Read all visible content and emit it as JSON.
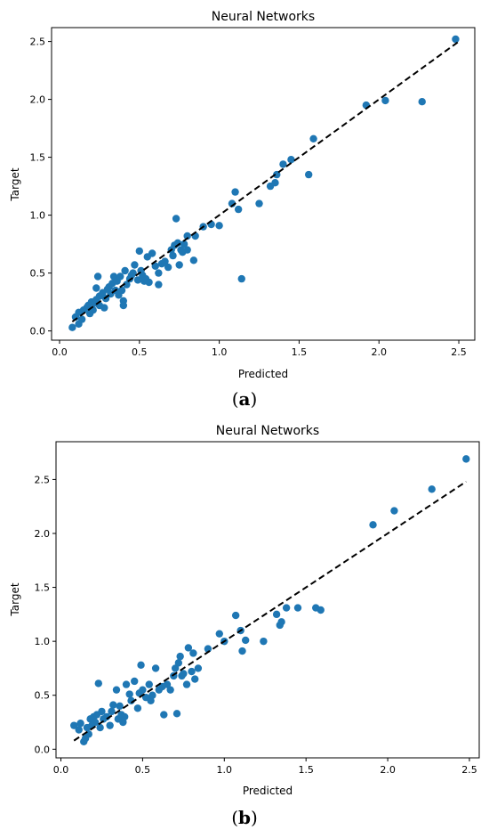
{
  "chart_data": [
    {
      "type": "scatter",
      "title": "Neural Networks",
      "xlabel": "Predicted",
      "ylabel": "Target",
      "xlim": [
        -0.05,
        2.6
      ],
      "ylim": [
        -0.08,
        2.62
      ],
      "xticks": [
        0.0,
        0.5,
        1.0,
        1.5,
        2.0,
        2.5
      ],
      "yticks": [
        0.0,
        0.5,
        1.0,
        1.5,
        2.0,
        2.5
      ],
      "tick_labels_x": [
        "0.0",
        "0.5",
        "1.0",
        "1.5",
        "2.0",
        "2.5"
      ],
      "tick_labels_y": [
        "0.0",
        "0.5",
        "1.0",
        "1.5",
        "2.0",
        "2.5"
      ],
      "grid": false,
      "point_color": "#1f77b4",
      "reference_line": {
        "x": [
          0.08,
          2.5
        ],
        "y": [
          0.08,
          2.5
        ],
        "style": "dashed",
        "color": "#000000"
      },
      "points": [
        [
          0.08,
          0.03
        ],
        [
          0.1,
          0.12
        ],
        [
          0.12,
          0.06
        ],
        [
          0.12,
          0.16
        ],
        [
          0.14,
          0.1
        ],
        [
          0.15,
          0.18
        ],
        [
          0.17,
          0.2
        ],
        [
          0.18,
          0.22
        ],
        [
          0.19,
          0.15
        ],
        [
          0.2,
          0.25
        ],
        [
          0.21,
          0.18
        ],
        [
          0.22,
          0.24
        ],
        [
          0.23,
          0.27
        ],
        [
          0.23,
          0.37
        ],
        [
          0.24,
          0.47
        ],
        [
          0.25,
          0.3
        ],
        [
          0.25,
          0.22
        ],
        [
          0.27,
          0.33
        ],
        [
          0.28,
          0.2
        ],
        [
          0.29,
          0.28
        ],
        [
          0.3,
          0.36
        ],
        [
          0.31,
          0.38
        ],
        [
          0.32,
          0.32
        ],
        [
          0.33,
          0.41
        ],
        [
          0.34,
          0.47
        ],
        [
          0.35,
          0.35
        ],
        [
          0.36,
          0.43
        ],
        [
          0.37,
          0.31
        ],
        [
          0.38,
          0.47
        ],
        [
          0.39,
          0.35
        ],
        [
          0.4,
          0.26
        ],
        [
          0.4,
          0.22
        ],
        [
          0.41,
          0.52
        ],
        [
          0.42,
          0.4
        ],
        [
          0.44,
          0.45
        ],
        [
          0.45,
          0.48
        ],
        [
          0.46,
          0.5
        ],
        [
          0.47,
          0.57
        ],
        [
          0.49,
          0.44
        ],
        [
          0.5,
          0.69
        ],
        [
          0.51,
          0.52
        ],
        [
          0.52,
          0.48
        ],
        [
          0.53,
          0.43
        ],
        [
          0.54,
          0.45
        ],
        [
          0.55,
          0.64
        ],
        [
          0.56,
          0.42
        ],
        [
          0.58,
          0.67
        ],
        [
          0.6,
          0.56
        ],
        [
          0.62,
          0.5
        ],
        [
          0.62,
          0.4
        ],
        [
          0.64,
          0.58
        ],
        [
          0.66,
          0.6
        ],
        [
          0.68,
          0.55
        ],
        [
          0.7,
          0.7
        ],
        [
          0.71,
          0.65
        ],
        [
          0.72,
          0.74
        ],
        [
          0.73,
          0.97
        ],
        [
          0.74,
          0.76
        ],
        [
          0.75,
          0.57
        ],
        [
          0.76,
          0.7
        ],
        [
          0.77,
          0.68
        ],
        [
          0.78,
          0.75
        ],
        [
          0.8,
          0.7
        ],
        [
          0.8,
          0.82
        ],
        [
          0.84,
          0.61
        ],
        [
          0.85,
          0.82
        ],
        [
          0.9,
          0.9
        ],
        [
          0.95,
          0.92
        ],
        [
          1.0,
          0.91
        ],
        [
          1.08,
          1.1
        ],
        [
          1.1,
          1.2
        ],
        [
          1.12,
          1.05
        ],
        [
          1.14,
          0.45
        ],
        [
          1.25,
          1.1
        ],
        [
          1.32,
          1.25
        ],
        [
          1.35,
          1.28
        ],
        [
          1.36,
          1.35
        ],
        [
          1.4,
          1.44
        ],
        [
          1.45,
          1.48
        ],
        [
          1.56,
          1.35
        ],
        [
          1.59,
          1.66
        ],
        [
          1.92,
          1.95
        ],
        [
          2.04,
          1.99
        ],
        [
          2.27,
          1.98
        ],
        [
          2.48,
          2.52
        ]
      ]
    },
    {
      "type": "scatter",
      "title": "Neural Networks",
      "xlabel": "Predicted",
      "ylabel": "Target",
      "xlim": [
        -0.03,
        2.56
      ],
      "ylim": [
        -0.08,
        2.85
      ],
      "xticks": [
        0.0,
        0.5,
        1.0,
        1.5,
        2.0,
        2.5
      ],
      "yticks": [
        0.0,
        0.5,
        1.0,
        1.5,
        2.0,
        2.5
      ],
      "tick_labels_x": [
        "0.0",
        "0.5",
        "1.0",
        "1.5",
        "2.0",
        "2.5"
      ],
      "tick_labels_y": [
        "0.0",
        "0.5",
        "1.0",
        "1.5",
        "2.0",
        "2.5"
      ],
      "grid": false,
      "point_color": "#1f77b4",
      "reference_line": {
        "x": [
          0.08,
          2.48
        ],
        "y": [
          0.08,
          2.48
        ],
        "style": "dashed",
        "color": "#000000"
      },
      "points": [
        [
          0.08,
          0.22
        ],
        [
          0.11,
          0.18
        ],
        [
          0.12,
          0.24
        ],
        [
          0.14,
          0.07
        ],
        [
          0.15,
          0.1
        ],
        [
          0.16,
          0.2
        ],
        [
          0.17,
          0.14
        ],
        [
          0.18,
          0.28
        ],
        [
          0.19,
          0.22
        ],
        [
          0.2,
          0.3
        ],
        [
          0.21,
          0.25
        ],
        [
          0.22,
          0.32
        ],
        [
          0.23,
          0.61
        ],
        [
          0.24,
          0.2
        ],
        [
          0.25,
          0.35
        ],
        [
          0.26,
          0.28
        ],
        [
          0.28,
          0.3
        ],
        [
          0.3,
          0.22
        ],
        [
          0.31,
          0.35
        ],
        [
          0.32,
          0.41
        ],
        [
          0.34,
          0.55
        ],
        [
          0.35,
          0.28
        ],
        [
          0.36,
          0.4
        ],
        [
          0.37,
          0.32
        ],
        [
          0.38,
          0.25
        ],
        [
          0.39,
          0.3
        ],
        [
          0.4,
          0.6
        ],
        [
          0.42,
          0.51
        ],
        [
          0.43,
          0.45
        ],
        [
          0.45,
          0.63
        ],
        [
          0.47,
          0.38
        ],
        [
          0.48,
          0.52
        ],
        [
          0.49,
          0.78
        ],
        [
          0.5,
          0.55
        ],
        [
          0.52,
          0.48
        ],
        [
          0.54,
          0.6
        ],
        [
          0.55,
          0.45
        ],
        [
          0.56,
          0.5
        ],
        [
          0.58,
          0.75
        ],
        [
          0.6,
          0.55
        ],
        [
          0.62,
          0.58
        ],
        [
          0.63,
          0.32
        ],
        [
          0.65,
          0.6
        ],
        [
          0.67,
          0.55
        ],
        [
          0.69,
          0.68
        ],
        [
          0.7,
          0.75
        ],
        [
          0.71,
          0.33
        ],
        [
          0.72,
          0.8
        ],
        [
          0.73,
          0.86
        ],
        [
          0.74,
          0.68
        ],
        [
          0.75,
          0.7
        ],
        [
          0.77,
          0.6
        ],
        [
          0.78,
          0.94
        ],
        [
          0.8,
          0.72
        ],
        [
          0.81,
          0.89
        ],
        [
          0.82,
          0.65
        ],
        [
          0.84,
          0.75
        ],
        [
          0.9,
          0.93
        ],
        [
          0.97,
          1.07
        ],
        [
          1.0,
          1.0
        ],
        [
          1.07,
          1.24
        ],
        [
          1.1,
          1.1
        ],
        [
          1.11,
          0.91
        ],
        [
          1.13,
          1.01
        ],
        [
          1.24,
          1.0
        ],
        [
          1.32,
          1.25
        ],
        [
          1.34,
          1.15
        ],
        [
          1.35,
          1.18
        ],
        [
          1.38,
          1.31
        ],
        [
          1.45,
          1.31
        ],
        [
          1.56,
          1.31
        ],
        [
          1.59,
          1.29
        ],
        [
          1.91,
          2.08
        ],
        [
          2.04,
          2.21
        ],
        [
          2.27,
          2.41
        ],
        [
          2.48,
          2.69
        ]
      ]
    }
  ],
  "captions": [
    {
      "open": "(",
      "letter": "a",
      "close": ")"
    },
    {
      "open": "(",
      "letter": "b",
      "close": ")"
    }
  ]
}
